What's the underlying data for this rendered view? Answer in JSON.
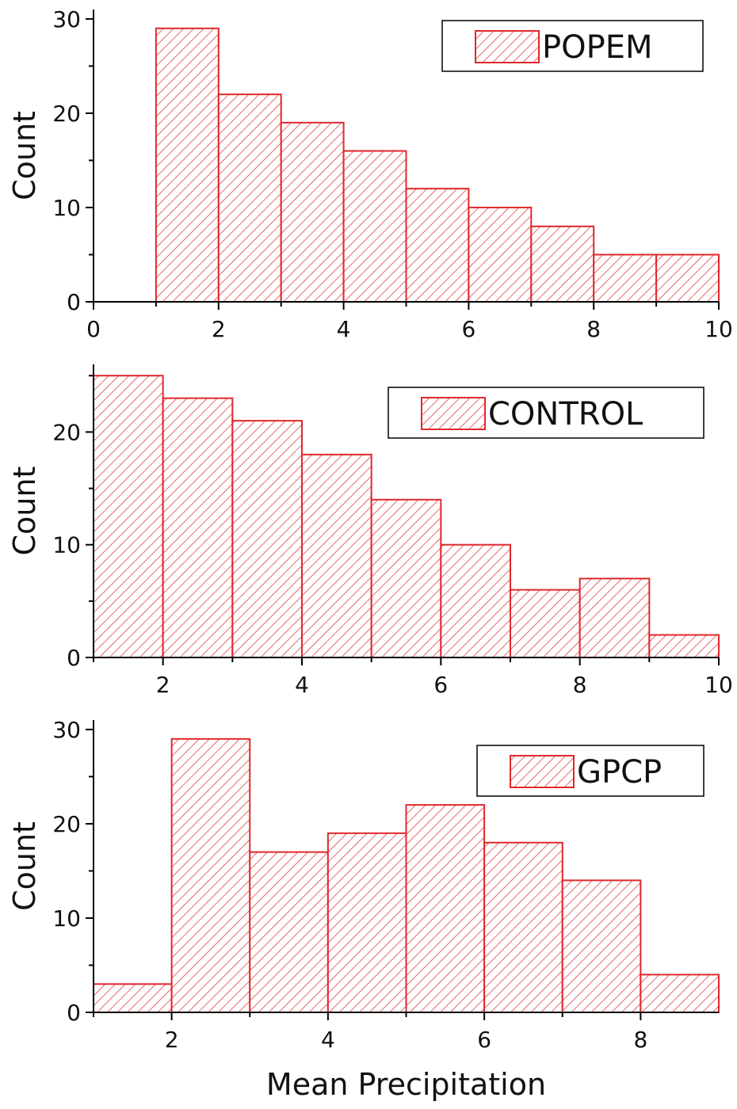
{
  "style": {
    "bar_color": "#e0282d",
    "axis_color": "#000000"
  },
  "chart_data": [
    {
      "type": "bar",
      "histogram": true,
      "legend": "POPEM",
      "legend_placement": "top-right",
      "ylabel": "Count",
      "xlabel": "",
      "xlim": [
        0,
        10
      ],
      "ylim": [
        0,
        31
      ],
      "xticks": [
        "0",
        "2",
        "4",
        "6",
        "8",
        "10"
      ],
      "yticks": [
        "0",
        "10",
        "20",
        "30"
      ],
      "grid": false,
      "bins": [
        {
          "x0": 1,
          "x1": 2,
          "value": 29
        },
        {
          "x0": 2,
          "x1": 3,
          "value": 22
        },
        {
          "x0": 3,
          "x1": 4,
          "value": 19
        },
        {
          "x0": 4,
          "x1": 5,
          "value": 16
        },
        {
          "x0": 5,
          "x1": 6,
          "value": 12
        },
        {
          "x0": 6,
          "x1": 7,
          "value": 10
        },
        {
          "x0": 7,
          "x1": 8,
          "value": 8
        },
        {
          "x0": 8,
          "x1": 9,
          "value": 5
        },
        {
          "x0": 9,
          "x1": 10,
          "value": 5
        }
      ]
    },
    {
      "type": "bar",
      "histogram": true,
      "legend": "CONTROL",
      "legend_placement": "top-right",
      "ylabel": "Count",
      "xlabel": "",
      "xlim": [
        1,
        10
      ],
      "ylim": [
        0,
        26
      ],
      "xticks": [
        "2",
        "4",
        "6",
        "8",
        "10"
      ],
      "yticks": [
        "0",
        "10",
        "20"
      ],
      "grid": false,
      "bins": [
        {
          "x0": 1,
          "x1": 2,
          "value": 25
        },
        {
          "x0": 2,
          "x1": 3,
          "value": 23
        },
        {
          "x0": 3,
          "x1": 4,
          "value": 21
        },
        {
          "x0": 4,
          "x1": 5,
          "value": 18
        },
        {
          "x0": 5,
          "x1": 6,
          "value": 14
        },
        {
          "x0": 6,
          "x1": 7,
          "value": 10
        },
        {
          "x0": 7,
          "x1": 8,
          "value": 6
        },
        {
          "x0": 8,
          "x1": 9,
          "value": 7
        },
        {
          "x0": 9,
          "x1": 10,
          "value": 2
        }
      ]
    },
    {
      "type": "bar",
      "histogram": true,
      "legend": "GPCP",
      "legend_placement": "top-right",
      "ylabel": "Count",
      "xlabel": "Mean Precipitation",
      "xlim": [
        1,
        9
      ],
      "ylim": [
        0,
        31
      ],
      "xticks": [
        "2",
        "4",
        "6",
        "8"
      ],
      "yticks": [
        "0",
        "10",
        "20",
        "30"
      ],
      "grid": false,
      "bins": [
        {
          "x0": 1,
          "x1": 2,
          "value": 3
        },
        {
          "x0": 2,
          "x1": 3,
          "value": 29
        },
        {
          "x0": 3,
          "x1": 4,
          "value": 17
        },
        {
          "x0": 4,
          "x1": 5,
          "value": 19
        },
        {
          "x0": 5,
          "x1": 6,
          "value": 22
        },
        {
          "x0": 6,
          "x1": 7,
          "value": 18
        },
        {
          "x0": 7,
          "x1": 8,
          "value": 14
        },
        {
          "x0": 8,
          "x1": 9,
          "value": 4
        }
      ]
    }
  ]
}
